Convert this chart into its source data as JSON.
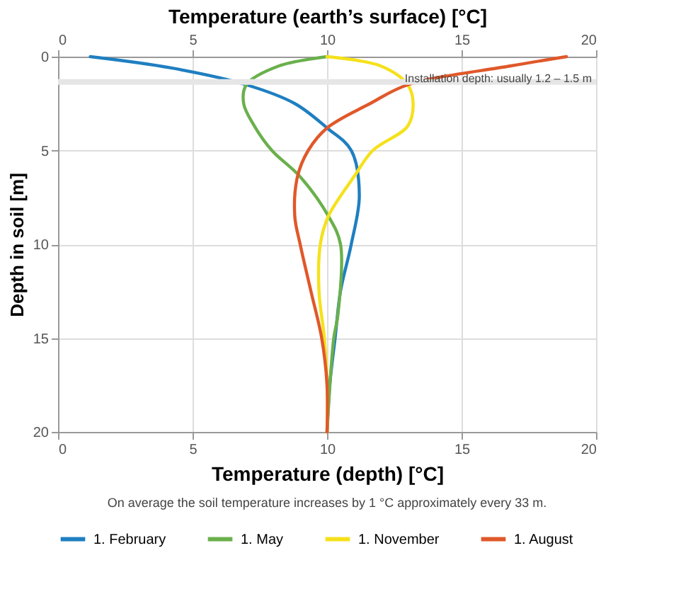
{
  "chart_data": {
    "type": "line",
    "x2label": "Temperature (earth’s surface) [°C]",
    "xlabel": "Temperature (depth) [°C]",
    "ylabel": "Depth in soil [m]",
    "annotations": [
      "On average the soil temperature increases by 1 °C approximately every 33 m."
    ],
    "xlim": [
      0,
      20
    ],
    "xticks": [
      0,
      5,
      10,
      15,
      20
    ],
    "x2lim": [
      0,
      20
    ],
    "x2ticks": [
      0,
      5,
      10,
      15,
      20
    ],
    "ylim": [
      20,
      0
    ],
    "yticks": [
      0,
      5,
      10,
      15,
      20
    ],
    "grid": true,
    "legend": "bottom",
    "marker": "none",
    "line_style": "solid",
    "bands": [
      {
        "axis": "y",
        "from": 1.2,
        "to": 1.5,
        "label": "Installation depth: usually 1.2 – 1.5 m",
        "color": "#e6e6e6"
      }
    ],
    "series": [
      {
        "name": "1. February",
        "color": "#1f7fc1",
        "x": [
          1.2,
          4.2,
          7.0,
          8.8,
          10.0,
          10.9,
          11.2,
          10.9,
          10.5,
          10.3,
          10.1,
          10.0
        ],
        "values": [
          0,
          0.6,
          1.5,
          2.5,
          3.8,
          5,
          7.4,
          10,
          12.5,
          15,
          17.5,
          20
        ]
      },
      {
        "name": "1. May",
        "color": "#6ab04c",
        "x": [
          10.0,
          8.2,
          7.0,
          6.9,
          7.3,
          7.95,
          9.0,
          10.05,
          10.5,
          10.4,
          10.25,
          10.0
        ],
        "values": [
          0,
          0.5,
          1.5,
          2.5,
          3.7,
          5,
          6.4,
          8.5,
          10,
          13.8,
          15,
          20
        ]
      },
      {
        "name": "1. November",
        "color": "#f5e11b",
        "x": [
          10.0,
          12.0,
          13.0,
          13.2,
          13.0,
          11.7,
          11.0,
          10.05,
          9.75,
          9.7,
          9.9,
          10.0,
          10.0
        ],
        "values": [
          0,
          0.5,
          1.5,
          2.5,
          3.7,
          5,
          6.4,
          8.5,
          10,
          12.5,
          15,
          17.5,
          20
        ]
      },
      {
        "name": "1. August",
        "color": "#e0582a",
        "x": [
          18.9,
          16.8,
          13.0,
          11.6,
          10.0,
          9.3,
          8.9,
          8.8,
          9.0,
          9.4,
          9.8,
          10.0,
          10.0
        ],
        "values": [
          0,
          0.5,
          1.5,
          2.5,
          3.8,
          5,
          6.4,
          8.5,
          10,
          12.5,
          15,
          17.5,
          20
        ]
      }
    ]
  }
}
